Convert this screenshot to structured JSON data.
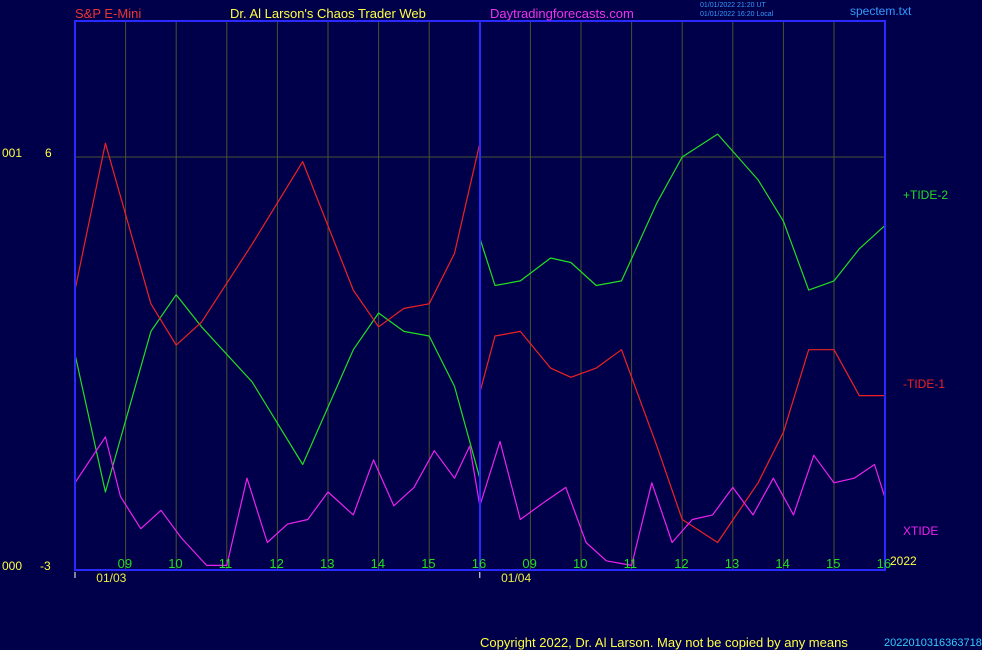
{
  "header": {
    "instrument": "S&P E-Mini",
    "site_title": "Dr. Al Larson's Chaos Trader Web",
    "site_link": "Daytradingforecasts.com",
    "timestamp_1": "01/01/2022 21:20 UT",
    "timestamp_2": "01/01/2022 16:20 Local",
    "file_name": "spectem.txt"
  },
  "footer": {
    "copyright": "Copyright 2022, Dr. Al Larson. May not be copied by any means",
    "code": "2022010316363718"
  },
  "colors": {
    "background": "#00004a",
    "frame": "#2a2aff",
    "grid": "#4a5230",
    "tide_plus_2": "#22dd22",
    "tide_minus_1": "#ee2222",
    "xtide": "#ee22ee",
    "axis_text": "#eeee44",
    "hour_text": "#22dd22",
    "copyright_text": "#ffff44",
    "title_red": "#ee3333",
    "title_magenta": "#ee33ee",
    "small_text": "#3399ff"
  },
  "chart_data": {
    "type": "line",
    "y_tick_labels": [
      {
        "value": 6,
        "left": "001",
        "right": "6"
      },
      {
        "value": -3,
        "left": "000",
        "right": "-3"
      }
    ],
    "ylim": [
      -3,
      6
    ],
    "year_label": "2022",
    "hour_ticks": [
      {
        "index": 1,
        "label": "09"
      },
      {
        "index": 2,
        "label": "10"
      },
      {
        "index": 3,
        "label": "11"
      },
      {
        "index": 4,
        "label": "12"
      },
      {
        "index": 5,
        "label": "13"
      },
      {
        "index": 6,
        "label": "14"
      },
      {
        "index": 7,
        "label": "15"
      },
      {
        "index": 8,
        "label": "16"
      },
      {
        "index": 9,
        "label": "09"
      },
      {
        "index": 10,
        "label": "10"
      },
      {
        "index": 11,
        "label": "11"
      },
      {
        "index": 12,
        "label": "12"
      },
      {
        "index": 13,
        "label": "13"
      },
      {
        "index": 14,
        "label": "14"
      },
      {
        "index": 15,
        "label": "15"
      },
      {
        "index": 16,
        "label": "16"
      }
    ],
    "date_ticks": [
      {
        "index": 0.5,
        "label": "01/03"
      },
      {
        "index": 8.5,
        "label": "01/04"
      }
    ],
    "series": [
      {
        "name": "+TIDE-2",
        "color": "#22dd22",
        "points": [
          [
            0,
            1.7
          ],
          [
            0.6,
            -1.3
          ],
          [
            1.5,
            2.2
          ],
          [
            2.0,
            3.0
          ],
          [
            2.5,
            2.3
          ],
          [
            3.5,
            1.1
          ],
          [
            4.5,
            -0.7
          ],
          [
            5.5,
            1.8
          ],
          [
            6.0,
            2.6
          ],
          [
            6.5,
            2.2
          ],
          [
            7.0,
            2.1
          ],
          [
            7.5,
            1.0
          ],
          [
            8.0,
            -1.0
          ],
          [
            8.01,
            4.2
          ],
          [
            8.3,
            3.2
          ],
          [
            8.8,
            3.3
          ],
          [
            9.4,
            3.8
          ],
          [
            9.8,
            3.7
          ],
          [
            10.3,
            3.2
          ],
          [
            10.8,
            3.3
          ],
          [
            11.5,
            5.0
          ],
          [
            12.0,
            6.0
          ],
          [
            12.7,
            6.5
          ],
          [
            13.5,
            5.5
          ],
          [
            14.0,
            4.6
          ],
          [
            14.5,
            3.1
          ],
          [
            15.0,
            3.3
          ],
          [
            15.5,
            4.0
          ],
          [
            16.0,
            4.5
          ]
        ]
      },
      {
        "name": "-TIDE-1",
        "color": "#ee2222",
        "points": [
          [
            0,
            3.1
          ],
          [
            0.6,
            6.3
          ],
          [
            1.5,
            2.8
          ],
          [
            2.0,
            1.9
          ],
          [
            2.5,
            2.4
          ],
          [
            3.5,
            4.1
          ],
          [
            4.5,
            5.9
          ],
          [
            5.5,
            3.1
          ],
          [
            6.0,
            2.3
          ],
          [
            6.5,
            2.7
          ],
          [
            7.0,
            2.8
          ],
          [
            7.5,
            3.9
          ],
          [
            8.0,
            6.3
          ],
          [
            8.01,
            0.9
          ],
          [
            8.3,
            2.1
          ],
          [
            8.8,
            2.2
          ],
          [
            9.4,
            1.4
          ],
          [
            9.8,
            1.2
          ],
          [
            10.3,
            1.4
          ],
          [
            10.8,
            1.8
          ],
          [
            11.5,
            -0.3
          ],
          [
            12.0,
            -1.9
          ],
          [
            12.7,
            -2.4
          ],
          [
            13.5,
            -1.1
          ],
          [
            14.0,
            0.0
          ],
          [
            14.5,
            1.8
          ],
          [
            15.0,
            1.8
          ],
          [
            15.5,
            0.8
          ],
          [
            16.0,
            0.8
          ]
        ]
      },
      {
        "name": "XTIDE",
        "color": "#ee22ee",
        "points": [
          [
            0,
            -1.1
          ],
          [
            0.6,
            -0.1
          ],
          [
            0.9,
            -1.4
          ],
          [
            1.3,
            -2.1
          ],
          [
            1.7,
            -1.7
          ],
          [
            2.1,
            -2.3
          ],
          [
            2.6,
            -2.9
          ],
          [
            3.0,
            -2.9
          ],
          [
            3.4,
            -1.0
          ],
          [
            3.8,
            -2.4
          ],
          [
            4.2,
            -2.0
          ],
          [
            4.6,
            -1.9
          ],
          [
            5.0,
            -1.3
          ],
          [
            5.5,
            -1.8
          ],
          [
            5.9,
            -0.6
          ],
          [
            6.3,
            -1.6
          ],
          [
            6.7,
            -1.2
          ],
          [
            7.1,
            -0.4
          ],
          [
            7.5,
            -1.0
          ],
          [
            7.8,
            -0.3
          ],
          [
            8.0,
            -1.6
          ],
          [
            8.4,
            -0.2
          ],
          [
            8.8,
            -1.9
          ],
          [
            9.3,
            -1.5
          ],
          [
            9.7,
            -1.2
          ],
          [
            10.1,
            -2.4
          ],
          [
            10.5,
            -2.8
          ],
          [
            11.0,
            -2.9
          ],
          [
            11.4,
            -1.1
          ],
          [
            11.8,
            -2.4
          ],
          [
            12.2,
            -1.9
          ],
          [
            12.6,
            -1.8
          ],
          [
            13.0,
            -1.2
          ],
          [
            13.4,
            -1.8
          ],
          [
            13.8,
            -1.0
          ],
          [
            14.2,
            -1.8
          ],
          [
            14.6,
            -0.5
          ],
          [
            15.0,
            -1.1
          ],
          [
            15.4,
            -1.0
          ],
          [
            15.8,
            -0.7
          ],
          [
            16.0,
            -1.4
          ]
        ]
      }
    ]
  }
}
